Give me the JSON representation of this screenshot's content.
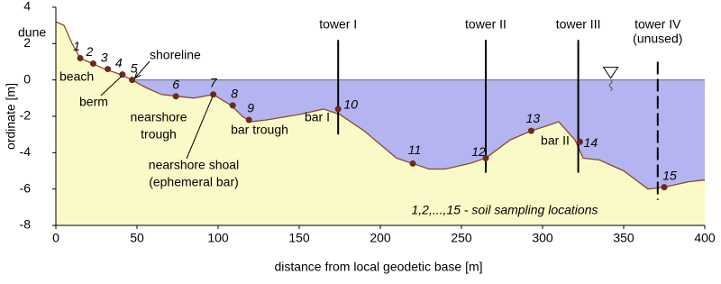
{
  "chart_data": {
    "type": "area",
    "x_label": "distance from local geodetic base [m]",
    "y_label": "ordinate [m]",
    "xlim": [
      0,
      400
    ],
    "ylim": [
      -8,
      4
    ],
    "xticks": [
      0,
      50,
      100,
      150,
      200,
      250,
      300,
      350,
      400
    ],
    "yticks": [
      -8,
      -6,
      -4,
      -2,
      0,
      2,
      4
    ],
    "water_level": 0,
    "water_color": "#b4b4f0",
    "sand_color": "#fafac8",
    "profile_color": "#8b4a2b",
    "profile": {
      "x": [
        0,
        5,
        10,
        15,
        20,
        25,
        30,
        40,
        47,
        55,
        65,
        75,
        85,
        97,
        108,
        115,
        120,
        130,
        150,
        165,
        175,
        190,
        210,
        220,
        230,
        240,
        255,
        265,
        280,
        293,
        300,
        310,
        320,
        325,
        335,
        350,
        365,
        375,
        380,
        390,
        400
      ],
      "y": [
        3.2,
        3.0,
        2.0,
        1.2,
        1.0,
        0.8,
        0.6,
        0.3,
        0.0,
        -0.4,
        -0.8,
        -0.9,
        -1.0,
        -0.8,
        -1.4,
        -2.0,
        -2.3,
        -2.2,
        -1.9,
        -1.6,
        -1.9,
        -2.8,
        -4.3,
        -4.6,
        -4.9,
        -4.9,
        -4.6,
        -4.3,
        -3.3,
        -2.8,
        -2.6,
        -2.3,
        -3.3,
        -4.3,
        -4.4,
        -5.0,
        -6.0,
        -5.9,
        -5.8,
        -5.6,
        -5.5
      ]
    },
    "samples": {
      "color": "#6b2a1e",
      "labels": [
        "1",
        "2",
        "3",
        "4",
        "5",
        "6",
        "7",
        "8",
        "9",
        "10",
        "11",
        "12",
        "13",
        "14",
        "15"
      ],
      "x": [
        15,
        23,
        32,
        41,
        47,
        74,
        97,
        109,
        119,
        174,
        220,
        265,
        293,
        323,
        375
      ],
      "y": [
        1.2,
        0.9,
        0.6,
        0.3,
        0.0,
        -0.9,
        -0.8,
        -1.4,
        -2.2,
        -1.6,
        -4.6,
        -4.3,
        -2.8,
        -3.4,
        -5.9
      ]
    },
    "towers": [
      {
        "label": [
          "tower I"
        ],
        "x": 174,
        "top": 2.2,
        "bottom": -3.0,
        "dashed": false
      },
      {
        "label": [
          "tower II"
        ],
        "x": 265,
        "top": 2.2,
        "bottom": -5.1,
        "dashed": false
      },
      {
        "label": [
          "tower III"
        ],
        "x": 322,
        "top": 2.2,
        "bottom": -5.1,
        "dashed": false
      },
      {
        "label": [
          "tower IV",
          "(unused)"
        ],
        "x": 371,
        "top": 1.0,
        "bottom": -6.6,
        "dashed": true
      }
    ],
    "annotations": [
      {
        "text": [
          "dune"
        ]
      },
      {
        "text": [
          "beach"
        ]
      },
      {
        "text": [
          "berm"
        ]
      },
      {
        "text": [
          "shoreline"
        ]
      },
      {
        "text": [
          "nearshore",
          "trough"
        ]
      },
      {
        "text": [
          "bar trough"
        ]
      },
      {
        "text": [
          "nearshore shoal",
          "(ephemeral bar)"
        ]
      },
      {
        "text": [
          "bar I"
        ]
      },
      {
        "text": [
          "bar II"
        ]
      }
    ],
    "note": "1,2,...,15 - soil sampling locations"
  }
}
